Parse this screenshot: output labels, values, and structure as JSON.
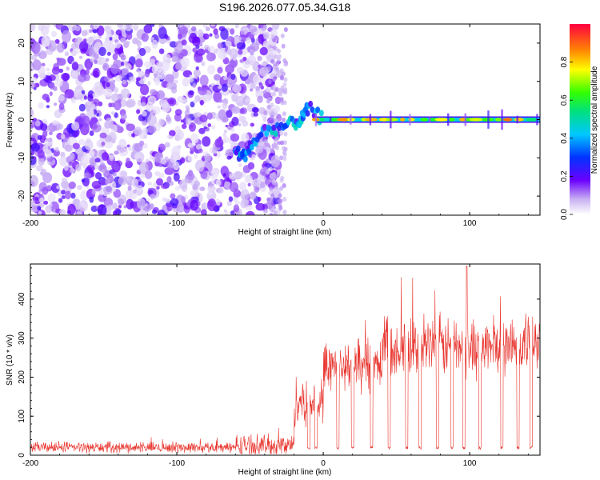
{
  "title": "S196.2026.077.05.34.G18",
  "chart_data": [
    {
      "type": "heatmap",
      "title": "S196.2026.077.05.34.G18",
      "xlabel": "Height of straight line (km)",
      "ylabel": "Frequency (Hz)",
      "xlim": [
        -200,
        148
      ],
      "ylim": [
        -25,
        25
      ],
      "xticks": [
        -200,
        -100,
        0,
        100
      ],
      "xtick_labels": [
        "-200",
        "-100",
        "0",
        "100"
      ],
      "yticks": [
        -20,
        -10,
        0,
        10,
        20
      ],
      "ytick_labels": [
        "-20",
        "-10",
        "0",
        "10",
        "20"
      ],
      "colorbar": {
        "label": "Normalized spectral amplitude",
        "range": [
          0,
          1
        ],
        "ticks": [
          0.0,
          0.2,
          0.4,
          0.6,
          0.8
        ],
        "tick_labels": [
          "0.0",
          "0.2",
          "0.4",
          "0.6",
          "0.8"
        ]
      },
      "features": {
        "noise_region_x": [
          -200,
          -30
        ],
        "noise_amplitude": 0.15,
        "drift_track": [
          [
            -60,
            -8
          ],
          [
            -55,
            -10
          ],
          [
            -50,
            -7
          ],
          [
            -40,
            -3
          ],
          [
            -30,
            -2
          ],
          [
            -20,
            -1
          ],
          [
            -15,
            0
          ],
          [
            -10,
            3
          ],
          [
            0,
            0
          ]
        ],
        "signal_line_frequency": 0,
        "signal_line_x": [
          -5,
          148
        ],
        "signal_peak_amplitude": 0.95
      }
    },
    {
      "type": "line",
      "xlabel": "Height of straight line (km)",
      "ylabel": "SNR (10 * v/v)",
      "xlim": [
        -200,
        148
      ],
      "ylim": [
        0,
        490
      ],
      "xticks": [
        -200,
        -100,
        0,
        100
      ],
      "xtick_labels": [
        "-200",
        "-100",
        "0",
        "100"
      ],
      "yticks": [
        0,
        100,
        200,
        300,
        400
      ],
      "ytick_labels": [
        "0",
        "100",
        "200",
        "300",
        "400"
      ],
      "series": [
        {
          "name": "SNR",
          "color": "#e8342d",
          "segments": [
            {
              "x": [
                -200,
                -60
              ],
              "baseline": 20,
              "spread": 12
            },
            {
              "x": [
                -60,
                -20
              ],
              "baseline": 25,
              "spread": 25
            },
            {
              "x": [
                -20,
                0
              ],
              "baseline": 140,
              "spread": 60
            },
            {
              "x": [
                0,
                40
              ],
              "baseline": 230,
              "spread": 60
            },
            {
              "x": [
                40,
                148
              ],
              "baseline": 280,
              "spread": 70
            }
          ],
          "peak": {
            "x": 98,
            "y": 485
          },
          "dropouts_x": [
            -10,
            -5,
            10,
            20,
            33,
            45,
            57,
            66,
            78,
            88,
            96,
            107,
            122,
            133,
            142
          ],
          "dropout_level": 15
        }
      ]
    }
  ]
}
